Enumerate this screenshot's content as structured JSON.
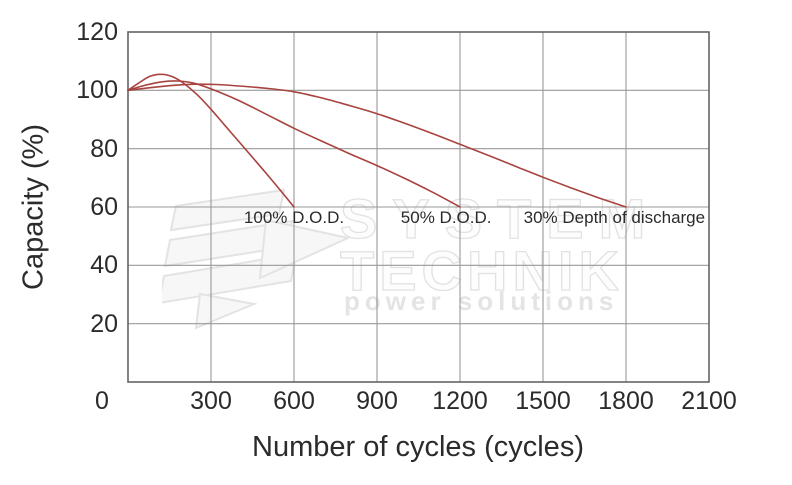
{
  "figure": {
    "x_axis_title": "Number of cycles (cycles)",
    "y_axis_title": "Capacity (%)"
  },
  "watermark": {
    "line1": "SYSTEM",
    "line2": "TECHNIK",
    "tagline": "power solutions",
    "logo_icon": "system-technik-stripes-arrow"
  },
  "colors": {
    "curve": "#a8433f",
    "grid": "#999999",
    "border": "#646464",
    "text": "#2b2b2b",
    "watermark": "#e2e2e2"
  },
  "chart_data": {
    "type": "line",
    "title": "",
    "xlabel": "Number of cycles (cycles)",
    "ylabel": "Capacity (%)",
    "xlim": [
      0,
      2100
    ],
    "ylim": [
      0,
      120
    ],
    "x_ticks": [
      0,
      300,
      600,
      900,
      1200,
      1500,
      1800,
      2100
    ],
    "y_ticks": [
      20,
      40,
      60,
      80,
      100,
      120
    ],
    "grid": true,
    "legend_position": "inline-annotations",
    "series": [
      {
        "name": "100% D.O.D.",
        "label_anchor": {
          "x": 600,
          "y": 56.3
        },
        "points": [
          [
            0,
            100
          ],
          [
            40,
            102.6
          ],
          [
            80,
            104.8
          ],
          [
            120,
            105.5
          ],
          [
            160,
            104.7
          ],
          [
            200,
            102.5
          ],
          [
            250,
            98.5
          ],
          [
            300,
            93.5
          ],
          [
            350,
            88
          ],
          [
            400,
            82.5
          ],
          [
            450,
            77
          ],
          [
            500,
            71.5
          ],
          [
            550,
            65.8
          ],
          [
            600,
            60
          ]
        ]
      },
      {
        "name": "50% D.O.D.",
        "label_anchor": {
          "x": 1150,
          "y": 56.3
        },
        "points": [
          [
            0,
            100
          ],
          [
            60,
            101.7
          ],
          [
            120,
            102.9
          ],
          [
            180,
            103.2
          ],
          [
            240,
            102.4
          ],
          [
            300,
            100.5
          ],
          [
            400,
            96.5
          ],
          [
            500,
            91.8
          ],
          [
            600,
            87
          ],
          [
            700,
            82.6
          ],
          [
            800,
            78.3
          ],
          [
            900,
            74.2
          ],
          [
            1000,
            69.8
          ],
          [
            1100,
            65.1
          ],
          [
            1200,
            60
          ]
        ]
      },
      {
        "name": "30% Depth of discharge",
        "label_anchor": {
          "x": 1758,
          "y": 56.3
        },
        "points": [
          [
            0,
            100
          ],
          [
            80,
            100.9
          ],
          [
            160,
            101.7
          ],
          [
            240,
            102.1
          ],
          [
            320,
            102
          ],
          [
            400,
            101.5
          ],
          [
            500,
            100.7
          ],
          [
            600,
            99.5
          ],
          [
            700,
            97.4
          ],
          [
            800,
            94.8
          ],
          [
            900,
            92
          ],
          [
            1000,
            88.7
          ],
          [
            1100,
            85.2
          ],
          [
            1200,
            81.5
          ],
          [
            1300,
            77.8
          ],
          [
            1400,
            74
          ],
          [
            1500,
            70.2
          ],
          [
            1600,
            66.6
          ],
          [
            1700,
            63.2
          ],
          [
            1800,
            60
          ]
        ]
      }
    ]
  }
}
